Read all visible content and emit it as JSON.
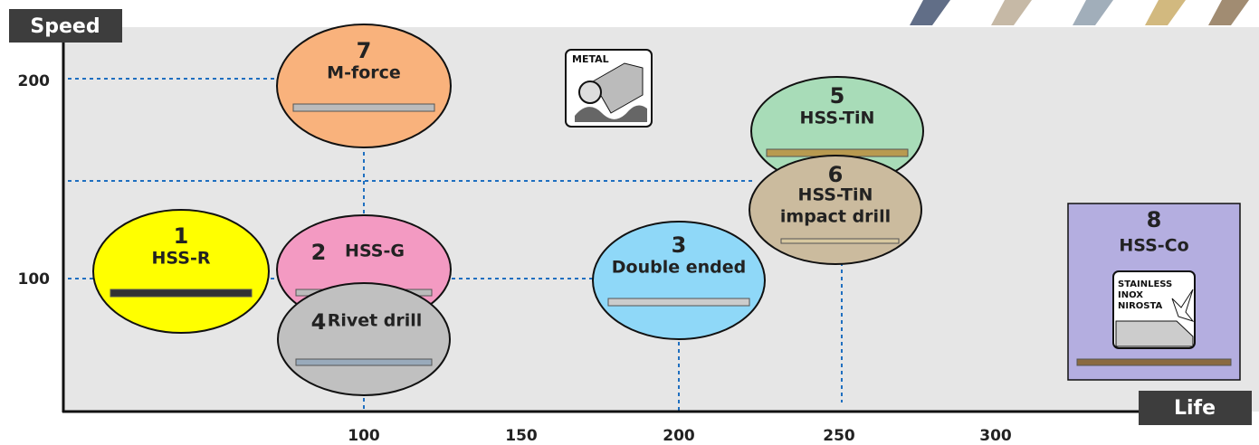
{
  "axes": {
    "y_label": "Speed",
    "x_label": "Life",
    "y_ticks": [
      "200",
      "100"
    ],
    "x_ticks": [
      "100",
      "150",
      "200",
      "250",
      "300"
    ]
  },
  "nodes": [
    {
      "number": "1",
      "label": "HSS-R"
    },
    {
      "number": "2",
      "label": "HSS-G"
    },
    {
      "number": "3",
      "label": "Double ended"
    },
    {
      "number": "4",
      "label": "Rivet drill"
    },
    {
      "number": "5",
      "label": "HSS-TiN"
    },
    {
      "number": "6",
      "label": "HSS-TiN",
      "sublabel": "impact drill"
    },
    {
      "number": "7",
      "label": "M-force"
    },
    {
      "number": "8",
      "label": "HSS-Co"
    }
  ],
  "icons": {
    "metal": "METAL",
    "stainless": [
      "STAINLESS",
      "INOX",
      "NIROSTA"
    ]
  }
}
